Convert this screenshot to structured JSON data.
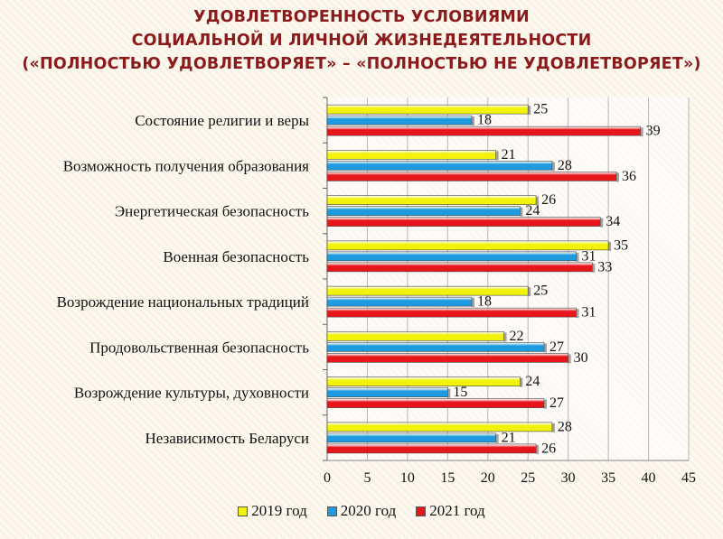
{
  "title": {
    "line1": "УДОВЛЕТВОРЕННОСТЬ УСЛОВИЯМИ",
    "line2": "СОЦИАЛЬНОЙ И ЛИЧНОЙ ЖИЗНЕДЕЯТЕЛЬНОСТИ",
    "line3": "(«ПОЛНОСТЬЮ УДОВЛЕТВОРЯЕТ» – «ПОЛНОСТЬЮ НЕ УДОВЛЕТВОРЯЕТ»)"
  },
  "chart_data": {
    "type": "bar",
    "orientation": "horizontal",
    "categories": [
      "Состояние религии и веры",
      "Возможность получения образования",
      "Энергетическая безопасность",
      "Военная безопасность",
      "Возрождение национальных традиций",
      "Продовольственная безопасность",
      "Возрождение культуры, духовности",
      "Независимость Беларуси"
    ],
    "series": [
      {
        "name": "2019 год",
        "color": "#f2f20a",
        "values": [
          25,
          21,
          26,
          35,
          25,
          22,
          24,
          28
        ]
      },
      {
        "name": "2020 год",
        "color": "#1e9be0",
        "values": [
          18,
          28,
          24,
          31,
          18,
          27,
          15,
          21
        ]
      },
      {
        "name": "2021 год",
        "color": "#e8151b",
        "values": [
          39,
          36,
          34,
          33,
          31,
          30,
          27,
          26
        ]
      }
    ],
    "xlim": [
      0,
      45
    ],
    "xticks": [
      0,
      5,
      10,
      15,
      20,
      25,
      30,
      35,
      40,
      45
    ],
    "grid": true,
    "legend_position": "bottom"
  }
}
